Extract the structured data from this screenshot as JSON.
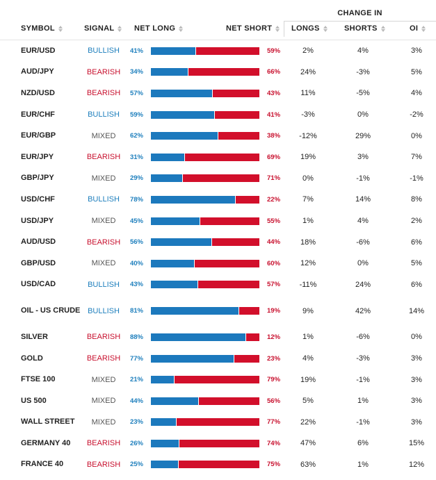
{
  "header": {
    "group_label": "CHANGE IN",
    "col_symbol": "SYMBOL",
    "col_signal": "SIGNAL",
    "col_net_long": "NET LONG",
    "col_net_short": "NET SHORT",
    "col_longs": "LONGS",
    "col_shorts": "SHORTS",
    "col_oi": "OI"
  },
  "colors": {
    "long_bar": "#1c79bd",
    "short_bar": "#d20f2b",
    "bullish": "#1e7fbd",
    "bearish": "#c8102e",
    "mixed": "#555555"
  },
  "rows": [
    {
      "symbol": "EUR/USD",
      "signal": "BULLISH",
      "net_long": "41%",
      "net_short": "59%",
      "long_fraction": 0.41,
      "longs": "2%",
      "shorts": "4%",
      "oi": "3%"
    },
    {
      "symbol": "AUD/JPY",
      "signal": "BEARISH",
      "net_long": "34%",
      "net_short": "66%",
      "long_fraction": 0.34,
      "longs": "24%",
      "shorts": "-3%",
      "oi": "5%"
    },
    {
      "symbol": "NZD/USD",
      "signal": "BEARISH",
      "net_long": "57%",
      "net_short": "43%",
      "long_fraction": 0.57,
      "longs": "11%",
      "shorts": "-5%",
      "oi": "4%"
    },
    {
      "symbol": "EUR/CHF",
      "signal": "BULLISH",
      "net_long": "59%",
      "net_short": "41%",
      "long_fraction": 0.59,
      "longs": "-3%",
      "shorts": "0%",
      "oi": "-2%"
    },
    {
      "symbol": "EUR/GBP",
      "signal": "MIXED",
      "net_long": "62%",
      "net_short": "38%",
      "long_fraction": 0.62,
      "longs": "-12%",
      "shorts": "29%",
      "oi": "0%"
    },
    {
      "symbol": "EUR/JPY",
      "signal": "BEARISH",
      "net_long": "31%",
      "net_short": "69%",
      "long_fraction": 0.31,
      "longs": "19%",
      "shorts": "3%",
      "oi": "7%"
    },
    {
      "symbol": "GBP/JPY",
      "signal": "MIXED",
      "net_long": "29%",
      "net_short": "71%",
      "long_fraction": 0.29,
      "longs": "0%",
      "shorts": "-1%",
      "oi": "-1%"
    },
    {
      "symbol": "USD/CHF",
      "signal": "BULLISH",
      "net_long": "78%",
      "net_short": "22%",
      "long_fraction": 0.78,
      "longs": "7%",
      "shorts": "14%",
      "oi": "8%"
    },
    {
      "symbol": "USD/JPY",
      "signal": "MIXED",
      "net_long": "45%",
      "net_short": "55%",
      "long_fraction": 0.45,
      "longs": "1%",
      "shorts": "4%",
      "oi": "2%"
    },
    {
      "symbol": "AUD/USD",
      "signal": "BEARISH",
      "net_long": "56%",
      "net_short": "44%",
      "long_fraction": 0.56,
      "longs": "18%",
      "shorts": "-6%",
      "oi": "6%"
    },
    {
      "symbol": "GBP/USD",
      "signal": "MIXED",
      "net_long": "40%",
      "net_short": "60%",
      "long_fraction": 0.4,
      "longs": "12%",
      "shorts": "0%",
      "oi": "5%"
    },
    {
      "symbol": "USD/CAD",
      "signal": "BULLISH",
      "net_long": "43%",
      "net_short": "57%",
      "long_fraction": 0.43,
      "longs": "-11%",
      "shorts": "24%",
      "oi": "6%"
    },
    {
      "symbol": "OIL - US CRUDE",
      "signal": "BULLISH",
      "net_long": "81%",
      "net_short": "19%",
      "long_fraction": 0.81,
      "longs": "9%",
      "shorts": "42%",
      "oi": "14%"
    },
    {
      "symbol": "SILVER",
      "signal": "BEARISH",
      "net_long": "88%",
      "net_short": "12%",
      "long_fraction": 0.88,
      "longs": "1%",
      "shorts": "-6%",
      "oi": "0%"
    },
    {
      "symbol": "GOLD",
      "signal": "BEARISH",
      "net_long": "77%",
      "net_short": "23%",
      "long_fraction": 0.77,
      "longs": "4%",
      "shorts": "-3%",
      "oi": "3%"
    },
    {
      "symbol": "FTSE 100",
      "signal": "MIXED",
      "net_long": "21%",
      "net_short": "79%",
      "long_fraction": 0.21,
      "longs": "19%",
      "shorts": "-1%",
      "oi": "3%"
    },
    {
      "symbol": "US 500",
      "signal": "MIXED",
      "net_long": "44%",
      "net_short": "56%",
      "long_fraction": 0.44,
      "longs": "5%",
      "shorts": "1%",
      "oi": "3%"
    },
    {
      "symbol": "WALL STREET",
      "signal": "MIXED",
      "net_long": "23%",
      "net_short": "77%",
      "long_fraction": 0.23,
      "longs": "22%",
      "shorts": "-1%",
      "oi": "3%"
    },
    {
      "symbol": "GERMANY 40",
      "signal": "BEARISH",
      "net_long": "26%",
      "net_short": "74%",
      "long_fraction": 0.26,
      "longs": "47%",
      "shorts": "6%",
      "oi": "15%"
    },
    {
      "symbol": "FRANCE 40",
      "signal": "BEARISH",
      "net_long": "25%",
      "net_short": "75%",
      "long_fraction": 0.25,
      "longs": "63%",
      "shorts": "1%",
      "oi": "12%"
    }
  ]
}
